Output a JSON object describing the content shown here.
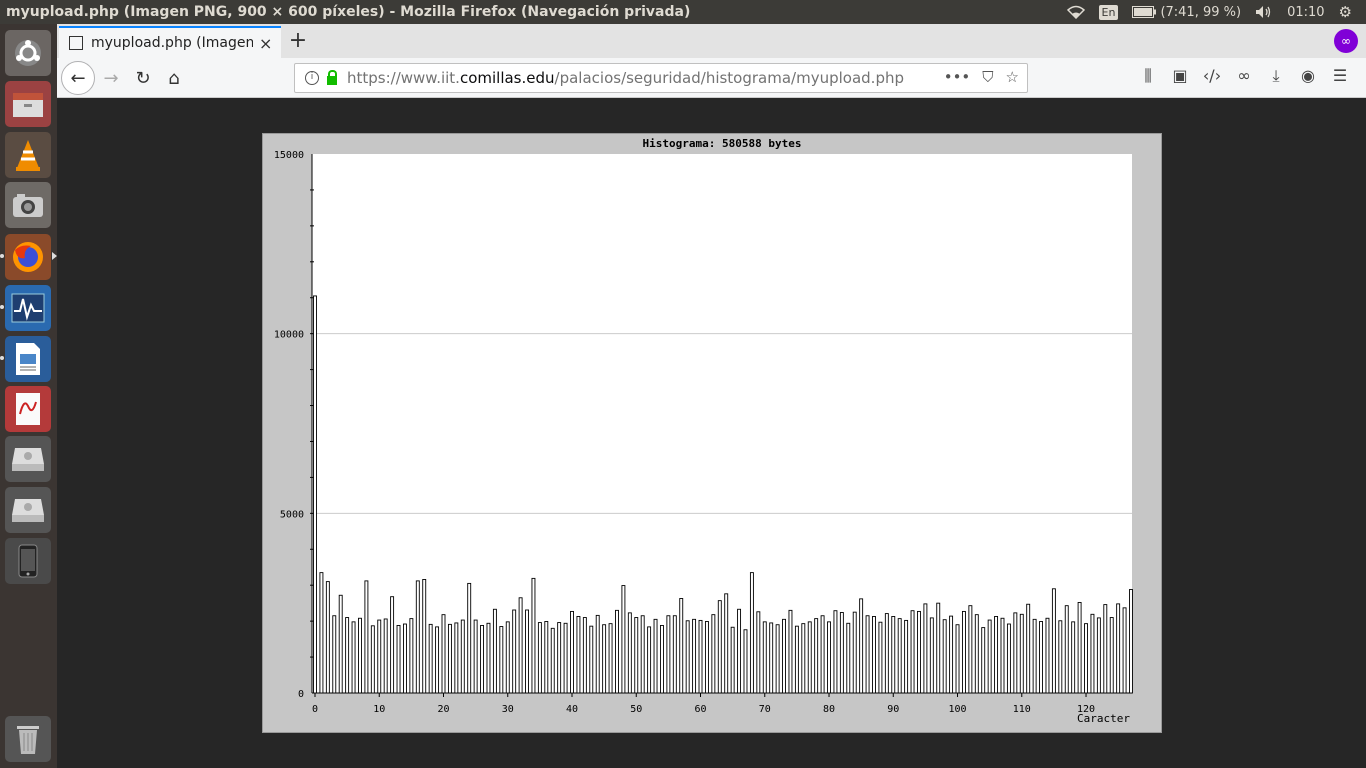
{
  "window": {
    "title": "myupload.php (Imagen PNG, 900 × 600 píxeles) - Mozilla Firefox (Navegación privada)"
  },
  "tray": {
    "lang": "En",
    "battery": "(7:41, 99 %)",
    "clock": "01:10"
  },
  "launcher": {
    "icons": [
      "ubuntu-icon",
      "file-cabinet-icon",
      "vlc-icon",
      "camera-icon",
      "firefox-icon",
      "system-monitor-icon",
      "writer-icon",
      "pdf-viewer-icon",
      "drive-icon",
      "drive-icon",
      "phone-icon",
      "trash-icon"
    ]
  },
  "tab": {
    "label": "myupload.php (Imagen P",
    "close": "×",
    "new": "+"
  },
  "nav": {
    "url_prefix": "https://www.iit.",
    "url_domain": "comillas.edu",
    "url_path": "/palacios/seguridad/histograma/myupload.php"
  },
  "chart_data": {
    "type": "bar",
    "title": "Histograma: 580588 bytes",
    "xlabel": "Caracter",
    "ylabel": "",
    "ylim": [
      0,
      15000
    ],
    "yticks": [
      0,
      5000,
      10000,
      15000
    ],
    "xticks": [
      0,
      10,
      20,
      30,
      40,
      50,
      60,
      70,
      80,
      90,
      100,
      110,
      120
    ],
    "grid": true,
    "categories": [
      0,
      1,
      2,
      3,
      4,
      5,
      6,
      7,
      8,
      9,
      10,
      11,
      12,
      13,
      14,
      15,
      16,
      17,
      18,
      19,
      20,
      21,
      22,
      23,
      24,
      25,
      26,
      27,
      28,
      29,
      30,
      31,
      32,
      33,
      34,
      35,
      36,
      37,
      38,
      39,
      40,
      41,
      42,
      43,
      44,
      45,
      46,
      47,
      48,
      49,
      50,
      51,
      52,
      53,
      54,
      55,
      56,
      57,
      58,
      59,
      60,
      61,
      62,
      63,
      64,
      65,
      66,
      67,
      68,
      69,
      70,
      71,
      72,
      73,
      74,
      75,
      76,
      77,
      78,
      79,
      80,
      81,
      82,
      83,
      84,
      85,
      86,
      87,
      88,
      89,
      90,
      91,
      92,
      93,
      94,
      95,
      96,
      97,
      98,
      99,
      100,
      101,
      102,
      103,
      104,
      105,
      106,
      107,
      108,
      109,
      110,
      111,
      112,
      113,
      114,
      115,
      116,
      117,
      118,
      119,
      120,
      121,
      122,
      123,
      124,
      125,
      126,
      127
    ],
    "values": [
      11050,
      3350,
      3100,
      2150,
      2720,
      2100,
      1980,
      2080,
      3120,
      1870,
      2030,
      2060,
      2680,
      1880,
      1920,
      2070,
      3120,
      3160,
      1910,
      1840,
      2180,
      1910,
      1950,
      2030,
      3050,
      2030,
      1880,
      1940,
      2330,
      1850,
      1980,
      2310,
      2650,
      2310,
      3190,
      1960,
      1990,
      1800,
      1960,
      1940,
      2270,
      2130,
      2100,
      1860,
      2160,
      1900,
      1930,
      2300,
      2990,
      2230,
      2100,
      2150,
      1840,
      2050,
      1880,
      2150,
      2150,
      2630,
      2010,
      2050,
      2020,
      1990,
      2180,
      2570,
      2760,
      1830,
      2330,
      1760,
      3350,
      2260,
      1980,
      1950,
      1900,
      2050,
      2300,
      1860,
      1930,
      1980,
      2070,
      2150,
      1980,
      2290,
      2240,
      1940,
      2250,
      2620,
      2150,
      2130,
      1970,
      2210,
      2130,
      2070,
      2020,
      2290,
      2270,
      2480,
      2090,
      2500,
      2040,
      2140,
      1900,
      2270,
      2430,
      2180,
      1820,
      2030,
      2130,
      2080,
      1920,
      2230,
      2190,
      2470,
      2050,
      1990,
      2080,
      2900,
      2010,
      2430,
      1980,
      2520,
      1930,
      2190,
      2090,
      2460,
      2100,
      2480,
      2370,
      2880
    ]
  }
}
